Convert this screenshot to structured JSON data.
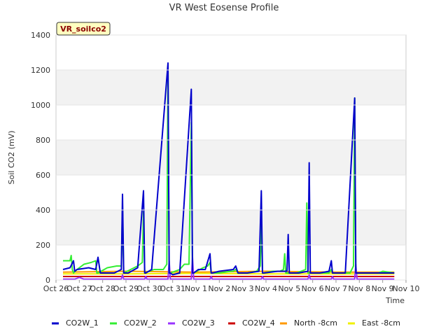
{
  "chart_data": {
    "type": "line",
    "title": "VR West Eosense Profile",
    "xlabel": "Time",
    "ylabel": "Soil CO2 (mV)",
    "ylim": [
      0,
      1400
    ],
    "yticks": [
      0,
      200,
      400,
      600,
      800,
      1000,
      1200,
      1400
    ],
    "xlim": [
      0,
      15
    ],
    "xtick_labels": [
      "Oct 26",
      "Oct 27",
      "Oct 28",
      "Oct 29",
      "Oct 30",
      "Oct 31",
      "Nov 1",
      "Nov 2",
      "Nov 3",
      "Nov 4",
      "Nov 5",
      "Nov 6",
      "Nov 7",
      "Nov 8",
      "Nov 9",
      "Nov 10"
    ],
    "station_label": "VR_soilco2",
    "grid": "horizontal bands",
    "legend_position": "bottom",
    "series": [
      {
        "name": "CO2W_1",
        "color": "#0000cc",
        "x": [
          0.3,
          0.6,
          0.75,
          0.8,
          0.9,
          1.4,
          1.7,
          1.8,
          1.9,
          2.5,
          2.8,
          2.85,
          2.9,
          3.1,
          3.5,
          3.75,
          3.8,
          3.85,
          4.1,
          4.8,
          4.85,
          4.9,
          5.0,
          5.3,
          5.8,
          5.85,
          5.9,
          6.1,
          6.4,
          6.6,
          6.65,
          6.7,
          7.0,
          7.6,
          7.7,
          7.8,
          8.2,
          8.7,
          8.8,
          8.85,
          8.9,
          9.5,
          9.7,
          9.9,
          9.95,
          10.0,
          10.4,
          10.8,
          10.85,
          10.9,
          11.3,
          11.7,
          11.8,
          11.85,
          11.9,
          12.4,
          12.8,
          12.85,
          12.9,
          13.3,
          13.8,
          13.85,
          13.9,
          14.3,
          14.5
        ],
        "y": [
          60,
          70,
          110,
          50,
          60,
          70,
          60,
          130,
          40,
          40,
          60,
          490,
          40,
          40,
          70,
          510,
          40,
          40,
          60,
          1240,
          40,
          40,
          30,
          40,
          1090,
          40,
          40,
          60,
          60,
          150,
          40,
          40,
          50,
          60,
          80,
          40,
          40,
          50,
          510,
          40,
          40,
          50,
          50,
          50,
          260,
          40,
          40,
          50,
          670,
          40,
          40,
          50,
          110,
          40,
          40,
          40,
          1040,
          40,
          40,
          40,
          40,
          40,
          40,
          40,
          40
        ]
      },
      {
        "name": "CO2W_2",
        "color": "#33ee33",
        "x": [
          0.3,
          0.6,
          0.65,
          0.7,
          0.75,
          0.9,
          1.2,
          1.5,
          1.7,
          1.75,
          1.8,
          2.2,
          2.6,
          2.8,
          2.85,
          2.9,
          3.2,
          3.5,
          3.7,
          3.75,
          3.8,
          4.2,
          4.6,
          4.75,
          4.8,
          4.85,
          4.9,
          5.3,
          5.5,
          5.7,
          5.8,
          5.85,
          5.9,
          6.3,
          6.5,
          6.6,
          6.65,
          6.7,
          7.0,
          7.5,
          7.6,
          7.7,
          7.8,
          8.2,
          8.6,
          8.75,
          8.8,
          8.85,
          8.9,
          9.3,
          9.6,
          9.75,
          9.8,
          9.85,
          9.9,
          10.3,
          10.7,
          10.75,
          10.8,
          10.85,
          10.9,
          11.3,
          11.7,
          11.8,
          11.85,
          11.9,
          12.3,
          12.6,
          12.75,
          12.8,
          12.85,
          12.9,
          13.3,
          13.8,
          14.0,
          14.5
        ],
        "y": [
          110,
          110,
          140,
          60,
          40,
          60,
          90,
          100,
          110,
          40,
          40,
          70,
          80,
          80,
          420,
          40,
          60,
          80,
          100,
          390,
          40,
          60,
          60,
          90,
          1230,
          40,
          40,
          60,
          90,
          90,
          900,
          40,
          40,
          70,
          80,
          100,
          40,
          40,
          40,
          50,
          50,
          60,
          40,
          40,
          50,
          80,
          320,
          40,
          40,
          50,
          50,
          60,
          150,
          40,
          40,
          40,
          60,
          440,
          40,
          40,
          40,
          40,
          40,
          60,
          40,
          40,
          40,
          40,
          80,
          1040,
          40,
          40,
          40,
          40,
          50,
          40
        ]
      },
      {
        "name": "CO2W_3",
        "color": "#9933ff",
        "x": [
          0.3,
          0.8,
          1.0,
          1.2,
          1.5,
          2.0,
          2.8,
          2.85,
          2.9,
          3.8,
          3.85,
          3.9,
          4.8,
          4.85,
          4.9,
          5.8,
          5.85,
          5.9,
          6.6,
          6.65,
          6.7,
          8.8,
          8.85,
          8.9,
          10.8,
          10.85,
          10.9,
          11.8,
          11.85,
          11.9,
          12.8,
          12.85,
          12.9,
          13.5,
          14.5
        ],
        "y": [
          5,
          5,
          15,
          5,
          5,
          5,
          5,
          30,
          5,
          5,
          20,
          5,
          5,
          110,
          5,
          5,
          130,
          5,
          5,
          20,
          5,
          5,
          20,
          5,
          5,
          30,
          5,
          5,
          20,
          5,
          5,
          90,
          5,
          5,
          5
        ]
      },
      {
        "name": "CO2W_4",
        "color": "#cc0000",
        "x": [
          0.3,
          14.5
        ],
        "y": [
          20,
          20
        ]
      },
      {
        "name": "North -8cm",
        "color": "#ff9900",
        "x": [
          0.3,
          3.0,
          6.0,
          9.0,
          12.0,
          14.5
        ],
        "y": [
          45,
          50,
          45,
          50,
          45,
          45
        ]
      },
      {
        "name": "East -8cm",
        "color": "#f0f000",
        "x": [
          0.3,
          3.0,
          6.0,
          9.0,
          12.0,
          14.5
        ],
        "y": [
          35,
          35,
          38,
          35,
          35,
          35
        ]
      }
    ]
  }
}
